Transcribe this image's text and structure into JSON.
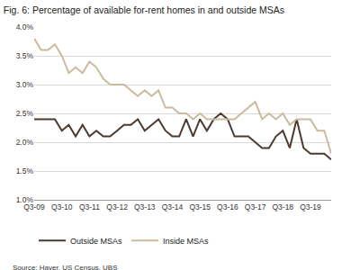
{
  "chart_data": {
    "type": "line",
    "title": "Fig. 6: Percentage of available for-rent homes in and outside MSAs",
    "source": "Source: Haver, US Census, UBS",
    "categories": [
      "Q3-09",
      null,
      null,
      null,
      "Q3-10",
      null,
      null,
      null,
      "Q3-11",
      null,
      null,
      null,
      "Q3-12",
      null,
      null,
      null,
      "Q3-13",
      null,
      null,
      null,
      "Q3-14",
      null,
      null,
      null,
      "Q3-15",
      null,
      null,
      null,
      "Q3-16",
      null,
      null,
      null,
      "Q3-17",
      null,
      null,
      null,
      "Q3-18",
      null,
      null,
      null,
      "Q3-19",
      null,
      null,
      null
    ],
    "series": [
      {
        "name": "Outside MSAs",
        "color": "#4b3a30",
        "values": [
          2.4,
          2.4,
          2.4,
          2.4,
          2.2,
          2.3,
          2.1,
          2.3,
          2.1,
          2.2,
          2.1,
          2.1,
          2.2,
          2.3,
          2.3,
          2.4,
          2.2,
          2.3,
          2.4,
          2.2,
          2.1,
          2.1,
          2.4,
          2.1,
          2.4,
          2.2,
          2.4,
          2.5,
          2.4,
          2.1,
          2.1,
          2.1,
          2.0,
          1.9,
          1.9,
          2.1,
          2.2,
          1.9,
          2.4,
          1.9,
          1.8,
          1.8,
          1.8,
          1.7
        ]
      },
      {
        "name": "Inside MSAs",
        "color": "#cbbb9d",
        "values": [
          3.8,
          3.6,
          3.6,
          3.7,
          3.5,
          3.2,
          3.3,
          3.2,
          3.4,
          3.3,
          3.1,
          3.0,
          3.0,
          3.0,
          2.9,
          2.8,
          2.9,
          2.8,
          2.9,
          2.6,
          2.6,
          2.5,
          2.5,
          2.4,
          2.5,
          2.4,
          2.4,
          2.4,
          2.4,
          2.4,
          2.5,
          2.6,
          2.7,
          2.4,
          2.5,
          2.4,
          2.5,
          2.3,
          2.4,
          2.4,
          2.4,
          2.2,
          2.2,
          1.8
        ]
      }
    ],
    "ylim": [
      1.0,
      4.0
    ],
    "yticks": [
      {
        "value": 1.0,
        "label": "1.0%"
      },
      {
        "value": 1.5,
        "label": "1.5%"
      },
      {
        "value": 2.0,
        "label": "2.0%"
      },
      {
        "value": 2.5,
        "label": "2.5%"
      },
      {
        "value": 3.0,
        "label": "3.0%"
      },
      {
        "value": 3.5,
        "label": "3.5%"
      },
      {
        "value": 4.0,
        "label": "4.0%"
      }
    ],
    "grid": true,
    "legend": "bottom"
  }
}
